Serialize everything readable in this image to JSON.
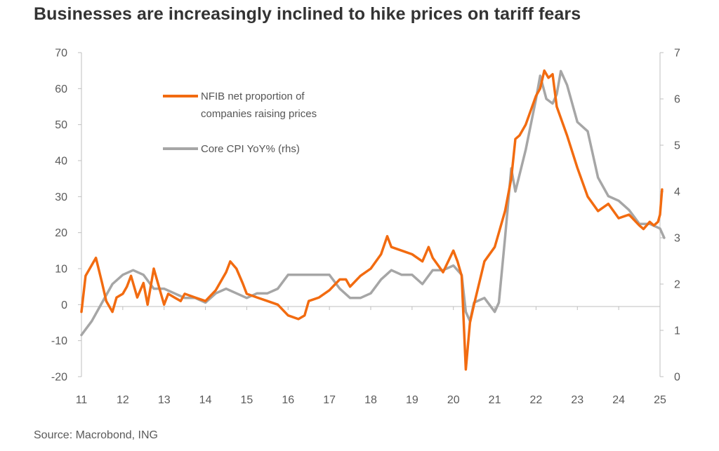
{
  "title": "Businesses are increasingly inclined to hike prices on tariff fears",
  "source": "Source: Macrobond, ING",
  "colors": {
    "nfib": "#F26B10",
    "cpi": "#A6A6A6",
    "axis": "#BFBFBF",
    "text": "#5a5a5a"
  },
  "chart_data": {
    "type": "line",
    "title": "Businesses are increasingly inclined to hike prices on tariff fears",
    "x_tick_labels": [
      "11",
      "12",
      "13",
      "14",
      "15",
      "16",
      "17",
      "18",
      "19",
      "20",
      "21",
      "22",
      "23",
      "24",
      "25"
    ],
    "y_left_ticks": [
      "70",
      "60",
      "50",
      "40",
      "30",
      "20",
      "10",
      "0",
      "-10",
      "-20"
    ],
    "y_right_ticks": [
      "7",
      "6",
      "5",
      "4",
      "3",
      "2",
      "1",
      "0"
    ],
    "ylim_left": [
      -20,
      70
    ],
    "ylim_right": [
      0,
      7
    ],
    "xlim": [
      2011.0,
      2025.0
    ],
    "grid": false,
    "legend_placement": "top-center",
    "series": [
      {
        "name": "NFIB net proportion of companies raising prices",
        "axis": "left",
        "color": "#F26B10",
        "x": [
          2011.0,
          2011.1,
          2011.25,
          2011.35,
          2011.5,
          2011.6,
          2011.75,
          2011.85,
          2012.0,
          2012.1,
          2012.2,
          2012.35,
          2012.5,
          2012.6,
          2012.75,
          2012.9,
          2013.0,
          2013.1,
          2013.25,
          2013.4,
          2013.5,
          2013.75,
          2014.0,
          2014.25,
          2014.5,
          2014.6,
          2014.75,
          2014.9,
          2015.0,
          2015.25,
          2015.5,
          2015.75,
          2016.0,
          2016.25,
          2016.4,
          2016.5,
          2016.75,
          2017.0,
          2017.25,
          2017.4,
          2017.5,
          2017.75,
          2018.0,
          2018.25,
          2018.4,
          2018.5,
          2018.75,
          2019.0,
          2019.25,
          2019.4,
          2019.5,
          2019.75,
          2020.0,
          2020.1,
          2020.2,
          2020.3,
          2020.4,
          2020.5,
          2020.75,
          2021.0,
          2021.1,
          2021.25,
          2021.4,
          2021.5,
          2021.6,
          2021.75,
          2022.0,
          2022.1,
          2022.2,
          2022.3,
          2022.4,
          2022.5,
          2022.75,
          2023.0,
          2023.25,
          2023.5,
          2023.75,
          2024.0,
          2024.25,
          2024.5,
          2024.6,
          2024.75,
          2024.85,
          2024.95,
          2025.0,
          2025.05
        ],
        "y": [
          -2,
          8,
          11,
          13,
          6,
          1,
          -2,
          2,
          3,
          5,
          8,
          2,
          6,
          0,
          10,
          4,
          0,
          3,
          2,
          1,
          3,
          2,
          1,
          4,
          9,
          12,
          10,
          6,
          3,
          2,
          1,
          0,
          -3,
          -4,
          -3,
          1,
          2,
          4,
          7,
          7,
          5,
          8,
          10,
          14,
          19,
          16,
          15,
          14,
          12,
          16,
          13,
          9,
          15,
          12,
          8,
          -18,
          -5,
          0,
          12,
          16,
          20,
          26,
          35,
          46,
          47,
          50,
          58,
          60,
          65,
          63,
          64,
          55,
          47,
          38,
          30,
          26,
          28,
          24,
          25,
          22,
          21,
          23,
          22,
          23,
          25,
          32
        ]
      },
      {
        "name": "Core CPI YoY% (rhs)",
        "axis": "right",
        "color": "#A6A6A6",
        "x": [
          2011.0,
          2011.25,
          2011.5,
          2011.75,
          2012.0,
          2012.25,
          2012.5,
          2012.75,
          2013.0,
          2013.25,
          2013.5,
          2013.75,
          2014.0,
          2014.25,
          2014.5,
          2014.75,
          2015.0,
          2015.25,
          2015.5,
          2015.75,
          2016.0,
          2016.25,
          2016.5,
          2016.75,
          2017.0,
          2017.25,
          2017.5,
          2017.75,
          2018.0,
          2018.25,
          2018.5,
          2018.75,
          2019.0,
          2019.25,
          2019.5,
          2019.75,
          2020.0,
          2020.2,
          2020.3,
          2020.4,
          2020.5,
          2020.75,
          2021.0,
          2021.1,
          2021.25,
          2021.4,
          2021.5,
          2021.75,
          2022.0,
          2022.1,
          2022.25,
          2022.4,
          2022.5,
          2022.6,
          2022.75,
          2023.0,
          2023.25,
          2023.5,
          2023.75,
          2024.0,
          2024.25,
          2024.5,
          2024.75,
          2025.0,
          2025.1
        ],
        "y": [
          0.9,
          1.2,
          1.6,
          2.0,
          2.2,
          2.3,
          2.2,
          1.9,
          1.9,
          1.8,
          1.7,
          1.7,
          1.6,
          1.8,
          1.9,
          1.8,
          1.7,
          1.8,
          1.8,
          1.9,
          2.2,
          2.2,
          2.2,
          2.2,
          2.2,
          1.9,
          1.7,
          1.7,
          1.8,
          2.1,
          2.3,
          2.2,
          2.2,
          2.0,
          2.3,
          2.3,
          2.4,
          2.2,
          1.4,
          1.2,
          1.6,
          1.7,
          1.4,
          1.6,
          3.0,
          4.5,
          4.0,
          4.9,
          6.0,
          6.5,
          6.0,
          5.9,
          6.1,
          6.6,
          6.3,
          5.5,
          5.3,
          4.3,
          3.9,
          3.8,
          3.6,
          3.3,
          3.3,
          3.2,
          3.0
        ]
      }
    ]
  }
}
